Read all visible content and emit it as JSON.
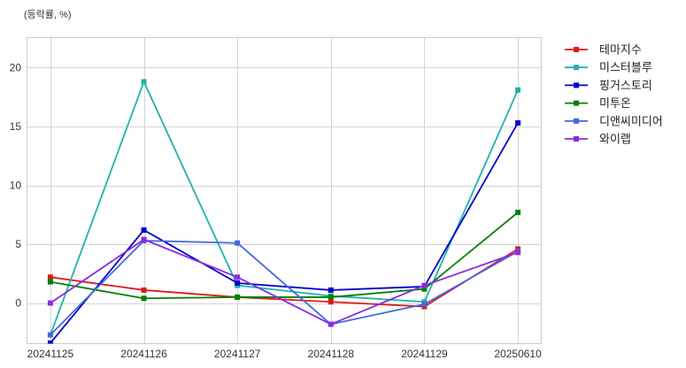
{
  "chart_data": {
    "type": "line",
    "title": "",
    "xlabel": "",
    "ylabel": "(등락률, %)",
    "categories": [
      "20241125",
      "20241126",
      "20241127",
      "20241128",
      "20241129",
      "20250610"
    ],
    "ylim": [
      -3.45,
      22.55
    ],
    "yticks": [
      0,
      5,
      10,
      15,
      20
    ],
    "grid": true,
    "legend_position": "outside-top-right",
    "series": [
      {
        "name": "테마지수",
        "color": "#dd1c1c",
        "values": [
          2.2,
          1.1,
          0.5,
          0.1,
          -0.3,
          4.6
        ]
      },
      {
        "name": "미스터블루",
        "color": "#20b2aa",
        "values": [
          -2.7,
          18.8,
          1.5,
          0.6,
          0.1,
          18.1
        ]
      },
      {
        "name": "핑거스토리",
        "color": "#0000cd",
        "values": [
          -3.4,
          6.2,
          1.7,
          1.1,
          1.4,
          15.3
        ]
      },
      {
        "name": "미투온",
        "color": "#008000",
        "values": [
          1.8,
          0.4,
          0.5,
          0.5,
          1.2,
          7.7
        ]
      },
      {
        "name": "디앤씨미디어",
        "color": "#4169e1",
        "values": [
          -2.7,
          5.3,
          5.1,
          -1.8,
          -0.1,
          4.4
        ]
      },
      {
        "name": "와이랩",
        "color": "#8a2be2",
        "values": [
          0.0,
          5.4,
          2.2,
          -1.8,
          1.5,
          4.3
        ]
      }
    ]
  }
}
